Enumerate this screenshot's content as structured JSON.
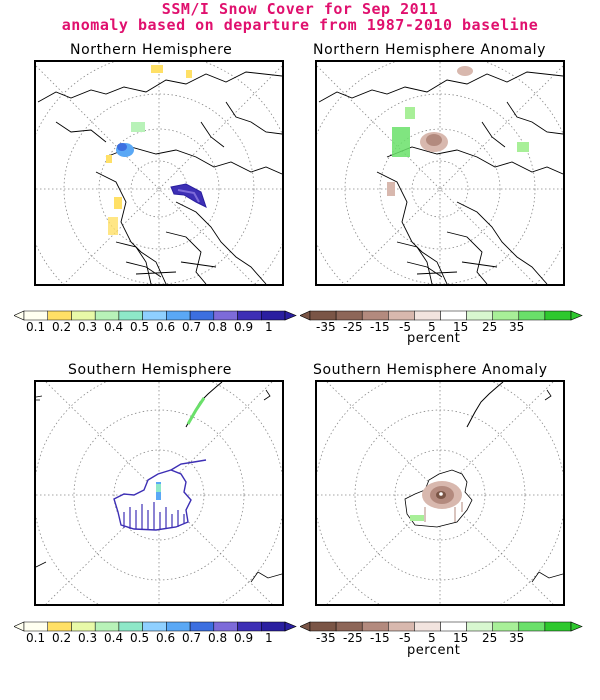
{
  "figure": {
    "title_line1": "SSM/I Snow Cover for Sep 2011",
    "title_line2": "anomaly based on departure from 1987-2010 baseline"
  },
  "panels": {
    "nh": {
      "title": "Northern Hemisphere"
    },
    "nh_anom": {
      "title": "Northern Hemisphere Anomaly"
    },
    "sh": {
      "title": "Southern Hemisphere"
    },
    "sh_anom": {
      "title": "Southern Hemisphere Anomaly"
    }
  },
  "colorbar_cover": {
    "labels": [
      "0.1",
      "0.2",
      "0.3",
      "0.4",
      "0.5",
      "0.6",
      "0.7",
      "0.8",
      "0.9",
      "1"
    ],
    "colors": [
      "#fffff0",
      "#ffe066",
      "#e8f9a8",
      "#b8f2b8",
      "#8ee8c8",
      "#8fd0ff",
      "#5aa8f5",
      "#3c6fe0",
      "#7d6bd9",
      "#3d2fb5",
      "#2a1fa0"
    ]
  },
  "colorbar_anom": {
    "labels": [
      "-35",
      "-25",
      "-15",
      "-5",
      "5",
      "15",
      "25",
      "35"
    ],
    "colors": [
      "#7a5546",
      "#8d6658",
      "#b38a7e",
      "#d8b8ae",
      "#f2e4df",
      "#ffffff",
      "#d8f7d0",
      "#a8ef98",
      "#6ae06a",
      "#2ec82e"
    ],
    "unit": "percent"
  },
  "colors": {
    "title": "#e0106e",
    "land_outline": "#000000",
    "graticule": "#888888"
  }
}
